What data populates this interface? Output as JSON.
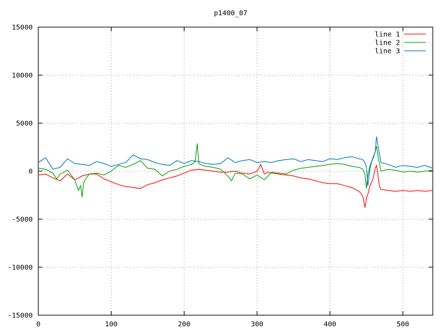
{
  "chart_data": {
    "type": "line",
    "title": "p1400_07",
    "xlabel": "",
    "ylabel": "",
    "xlim": [
      0,
      541
    ],
    "ylim": [
      -15000,
      15000
    ],
    "xticks": [
      0,
      100,
      200,
      300,
      400,
      500
    ],
    "yticks": [
      -15000,
      -10000,
      -5000,
      0,
      5000,
      10000,
      15000
    ],
    "grid": true,
    "legend_position": "top-right",
    "series": [
      {
        "name": "line 1",
        "color": "#ff0000",
        "x": [
          0,
          10,
          20,
          30,
          40,
          50,
          60,
          70,
          80,
          90,
          100,
          110,
          120,
          130,
          140,
          150,
          160,
          170,
          180,
          190,
          200,
          210,
          220,
          230,
          240,
          250,
          260,
          270,
          280,
          290,
          300,
          305,
          310,
          315,
          320,
          330,
          340,
          350,
          360,
          370,
          380,
          390,
          400,
          410,
          420,
          430,
          440,
          445,
          448,
          450,
          452,
          455,
          458,
          460,
          462,
          464,
          466,
          468,
          470,
          480,
          490,
          500,
          510,
          520,
          530,
          541
        ],
        "y": [
          -400,
          -300,
          -700,
          -1000,
          -300,
          -900,
          -500,
          -300,
          -300,
          -800,
          -1100,
          -1400,
          -1600,
          -1700,
          -1800,
          -1400,
          -1200,
          -900,
          -700,
          -500,
          -200,
          100,
          200,
          100,
          0,
          -100,
          -100,
          0,
          -200,
          -300,
          0,
          700,
          -300,
          -100,
          -200,
          -300,
          -400,
          -500,
          -700,
          -800,
          -1000,
          -1200,
          -1300,
          -1300,
          -1500,
          -1700,
          -2100,
          -2600,
          -3800,
          -2800,
          -2400,
          -1500,
          -1000,
          -500,
          300,
          600,
          -500,
          -1600,
          -1900,
          -2000,
          -2100,
          -2000,
          -2100,
          -2000,
          -2100,
          -2000
        ]
      },
      {
        "name": "line 2",
        "color": "#00a000",
        "x": [
          0,
          10,
          20,
          25,
          30,
          40,
          50,
          55,
          58,
          60,
          62,
          65,
          70,
          80,
          90,
          100,
          110,
          120,
          130,
          140,
          150,
          160,
          170,
          180,
          190,
          200,
          210,
          215,
          218,
          220,
          225,
          230,
          240,
          250,
          260,
          265,
          270,
          280,
          290,
          300,
          310,
          320,
          330,
          340,
          350,
          360,
          370,
          380,
          390,
          400,
          410,
          420,
          430,
          440,
          445,
          448,
          450,
          452,
          455,
          460,
          464,
          466,
          470,
          480,
          490,
          500,
          510,
          520,
          530,
          541
        ],
        "y": [
          300,
          200,
          -200,
          -800,
          -300,
          100,
          -900,
          -2000,
          -1500,
          -2700,
          -1200,
          -800,
          -300,
          -200,
          -400,
          0,
          600,
          400,
          700,
          1100,
          300,
          200,
          -500,
          0,
          200,
          500,
          700,
          1000,
          2900,
          800,
          600,
          500,
          400,
          200,
          -500,
          -1000,
          -200,
          -300,
          -800,
          -400,
          -900,
          -100,
          -200,
          -300,
          100,
          300,
          400,
          500,
          600,
          700,
          800,
          700,
          500,
          400,
          200,
          -300,
          -1800,
          -400,
          600,
          1500,
          2600,
          1500,
          0,
          200,
          100,
          -100,
          0,
          -100,
          0,
          100
        ]
      },
      {
        "name": "line 3",
        "color": "#0070c0",
        "x": [
          0,
          10,
          20,
          30,
          40,
          50,
          60,
          70,
          80,
          90,
          100,
          110,
          120,
          130,
          140,
          150,
          160,
          170,
          180,
          190,
          200,
          210,
          220,
          230,
          240,
          250,
          260,
          270,
          280,
          290,
          300,
          310,
          320,
          330,
          340,
          350,
          360,
          370,
          380,
          390,
          400,
          410,
          420,
          430,
          440,
          445,
          448,
          450,
          452,
          455,
          458,
          462,
          464,
          466,
          470,
          480,
          490,
          500,
          510,
          520,
          530,
          541
        ],
        "y": [
          900,
          1400,
          200,
          400,
          1300,
          800,
          700,
          600,
          1000,
          800,
          500,
          700,
          900,
          1700,
          1300,
          1200,
          900,
          700,
          600,
          1100,
          800,
          1100,
          1000,
          800,
          700,
          800,
          1400,
          900,
          1100,
          1200,
          900,
          1000,
          900,
          1100,
          1200,
          1300,
          1000,
          1200,
          1100,
          1000,
          1300,
          1200,
          1400,
          1500,
          1300,
          1200,
          900,
          400,
          -1500,
          300,
          1200,
          2000,
          3600,
          2600,
          900,
          700,
          400,
          600,
          500,
          400,
          600,
          300
        ]
      }
    ]
  }
}
